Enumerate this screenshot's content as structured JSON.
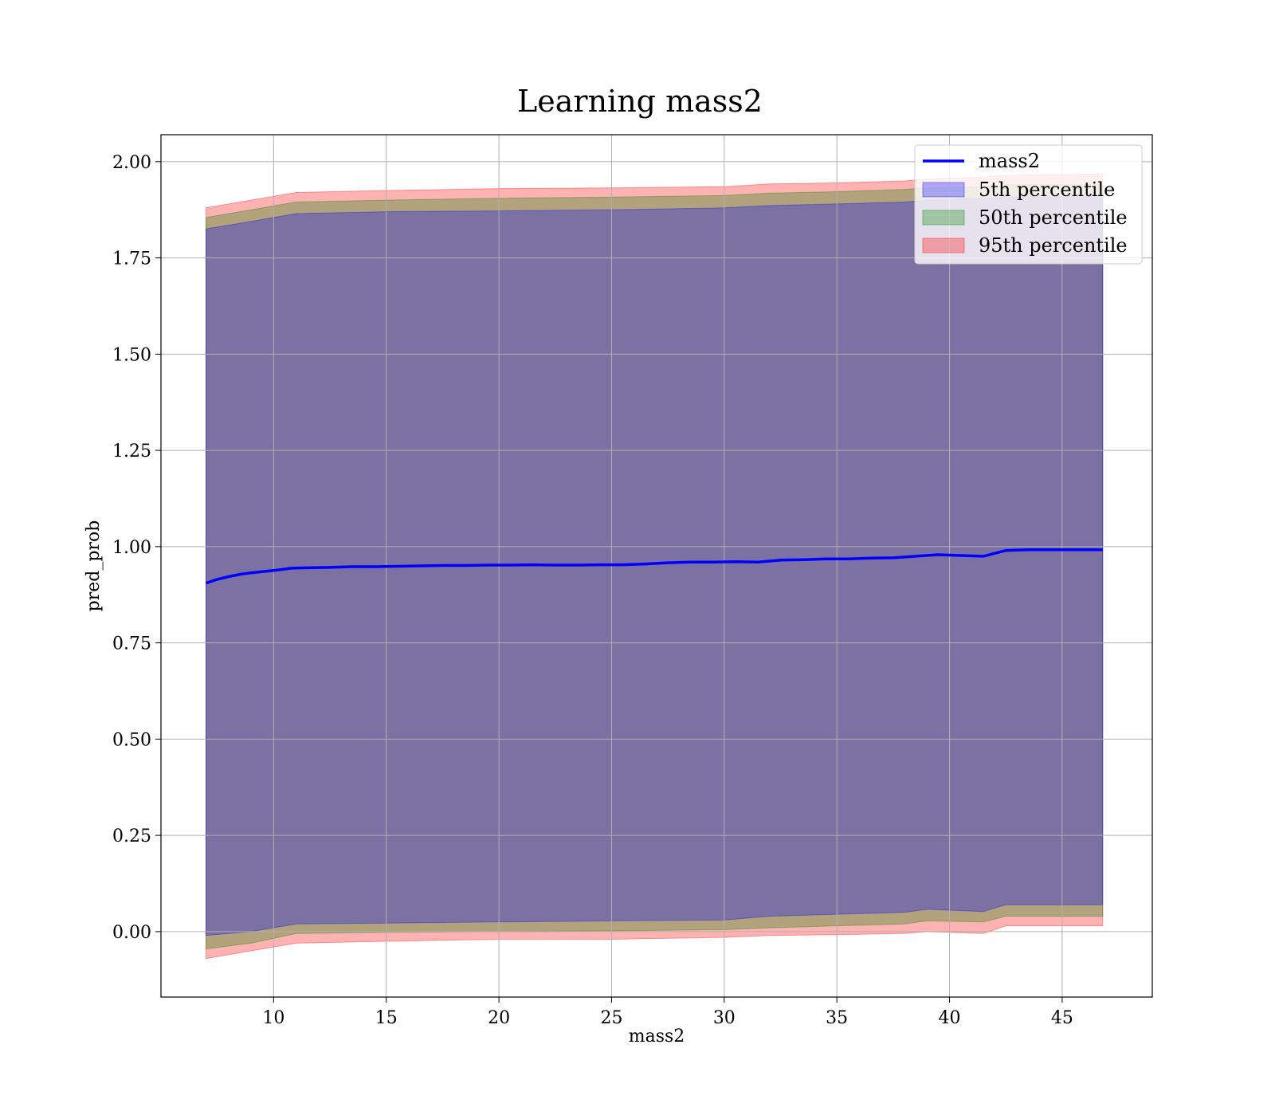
{
  "chart_data": {
    "type": "area",
    "title": "Learning mass2",
    "xlabel": "mass2",
    "ylabel": "pred_prob",
    "xlim": [
      5,
      49
    ],
    "ylim": [
      -0.17,
      2.07
    ],
    "xticks": [
      10,
      15,
      20,
      25,
      30,
      35,
      40,
      45
    ],
    "xtick_labels": [
      "10",
      "15",
      "20",
      "25",
      "30",
      "35",
      "40",
      "45"
    ],
    "yticks": [
      0.0,
      0.25,
      0.5,
      0.75,
      1.0,
      1.25,
      1.5,
      1.75,
      2.0
    ],
    "ytick_labels": [
      "0.00",
      "0.25",
      "0.50",
      "0.75",
      "1.00",
      "1.25",
      "1.50",
      "1.75",
      "2.00"
    ],
    "grid": true,
    "legend_position": "top-right",
    "line": {
      "name": "mass2",
      "color": "#0000ff",
      "x": [
        7.0,
        7.5,
        8.0,
        8.5,
        9.0,
        9.5,
        10.0,
        10.8,
        11.5,
        12.5,
        13.5,
        14.5,
        15.5,
        16.5,
        17.5,
        18.5,
        19.5,
        20.5,
        21.5,
        22.5,
        23.5,
        24.5,
        25.5,
        26.5,
        27.5,
        28.5,
        29.5,
        30.5,
        31.5,
        32.5,
        33.5,
        34.5,
        35.5,
        36.5,
        37.5,
        38.5,
        39.5,
        40.5,
        41.5,
        42.5,
        43.5,
        44.5,
        45.5,
        46.8
      ],
      "y": [
        0.905,
        0.915,
        0.922,
        0.928,
        0.932,
        0.935,
        0.938,
        0.944,
        0.945,
        0.946,
        0.948,
        0.948,
        0.949,
        0.95,
        0.951,
        0.951,
        0.952,
        0.952,
        0.953,
        0.952,
        0.952,
        0.953,
        0.953,
        0.955,
        0.958,
        0.96,
        0.96,
        0.961,
        0.96,
        0.965,
        0.966,
        0.968,
        0.968,
        0.97,
        0.971,
        0.975,
        0.979,
        0.977,
        0.975,
        0.99,
        0.992,
        0.992,
        0.992,
        0.992
      ]
    },
    "bands": [
      {
        "name": "95th percentile",
        "color": "#ff0000",
        "opacity": 0.3,
        "x": [
          7.0,
          9.0,
          11.0,
          15.0,
          20.0,
          25.0,
          30.0,
          32.0,
          35.0,
          38.0,
          39.0,
          41.5,
          42.5,
          46.8
        ],
        "low": [
          -0.07,
          -0.05,
          -0.03,
          -0.025,
          -0.02,
          -0.02,
          -0.015,
          -0.01,
          -0.008,
          -0.005,
          0.0,
          -0.005,
          0.015,
          0.015
        ],
        "high": [
          1.88,
          1.9,
          1.92,
          1.925,
          1.93,
          1.932,
          1.935,
          1.942,
          1.945,
          1.95,
          1.955,
          1.96,
          1.965,
          1.968
        ]
      },
      {
        "name": "50th percentile",
        "color": "#008000",
        "opacity": 0.3,
        "x": [
          7.0,
          9.0,
          11.0,
          15.0,
          20.0,
          25.0,
          30.0,
          32.0,
          35.0,
          38.0,
          39.0,
          41.5,
          42.5,
          46.8
        ],
        "low": [
          -0.045,
          -0.03,
          -0.005,
          -0.002,
          0.0,
          0.002,
          0.005,
          0.01,
          0.015,
          0.02,
          0.028,
          0.025,
          0.04,
          0.04
        ],
        "high": [
          1.855,
          1.875,
          1.895,
          1.9,
          1.905,
          1.908,
          1.912,
          1.918,
          1.922,
          1.928,
          1.932,
          1.935,
          1.94,
          1.94
        ]
      },
      {
        "name": "5th percentile",
        "color": "#0000ff",
        "opacity": 0.3,
        "x": [
          7.0,
          9.0,
          11.0,
          15.0,
          20.0,
          25.0,
          30.0,
          32.0,
          35.0,
          38.0,
          39.0,
          41.5,
          42.5,
          46.8
        ],
        "low": [
          -0.01,
          0.0,
          0.02,
          0.022,
          0.025,
          0.028,
          0.03,
          0.04,
          0.045,
          0.05,
          0.058,
          0.052,
          0.07,
          0.07
        ],
        "high": [
          1.825,
          1.845,
          1.865,
          1.87,
          1.872,
          1.875,
          1.88,
          1.886,
          1.89,
          1.895,
          1.9,
          1.905,
          1.908,
          1.91
        ]
      }
    ],
    "legend": [
      "mass2",
      "5th percentile",
      "50th percentile",
      "95th percentile"
    ]
  }
}
